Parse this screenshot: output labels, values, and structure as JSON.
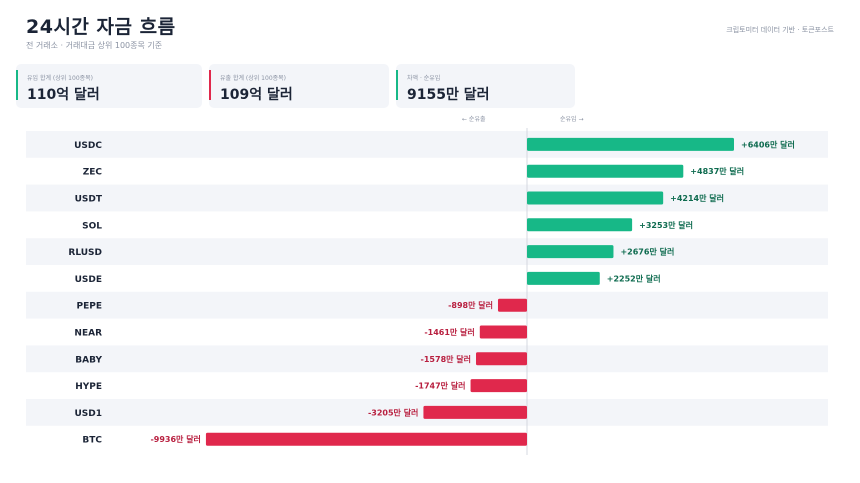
{
  "header": {
    "title": "24시간 자금 흐름",
    "subtitle": "전 거래소 · 거래대금 상위 100종목 기준",
    "source": "크립토미터 데이터 기반 · 토큰포스트"
  },
  "summary": [
    {
      "label": "유입 합계 (상위 100종목)",
      "value": "110억 달러",
      "color": "#17b887"
    },
    {
      "label": "유출 합계 (상위 100종목)",
      "value": "109억 달러",
      "color": "#e0284c"
    },
    {
      "label": "차액 · 순유입",
      "value": "9155만 달러",
      "color": "#17b887"
    }
  ],
  "axis_captions": {
    "left": "← 순유출",
    "right": "순유입 →"
  },
  "colors": {
    "inflow": "#17b887",
    "outflow": "#e0284c",
    "inflow_text": "#0e6b4f",
    "outflow_text": "#b81f3f",
    "stripe": "#f3f5f9"
  },
  "chart_data": {
    "type": "bar",
    "orientation": "horizontal",
    "categories": [
      "USDC",
      "ZEC",
      "USDT",
      "SOL",
      "RLUSD",
      "USDE",
      "PEPE",
      "NEAR",
      "BABY",
      "HYPE",
      "USD1",
      "BTC"
    ],
    "values": [
      6406,
      4837,
      4214,
      3253,
      2676,
      2252,
      -898,
      -1461,
      -1578,
      -1747,
      -3205,
      -9936
    ],
    "value_labels": [
      "+6406만 달러",
      "+4837만 달러",
      "+4214만 달러",
      "+3253만 달러",
      "+2676만 달러",
      "+2252만 달러",
      "-898만 달러",
      "-1461만 달러",
      "-1578만 달러",
      "-1747만 달러",
      "-3205만 달러",
      "-9936만 달러"
    ],
    "unit": "만 달러",
    "xlim": [
      -9936,
      6406
    ],
    "grid": false
  }
}
